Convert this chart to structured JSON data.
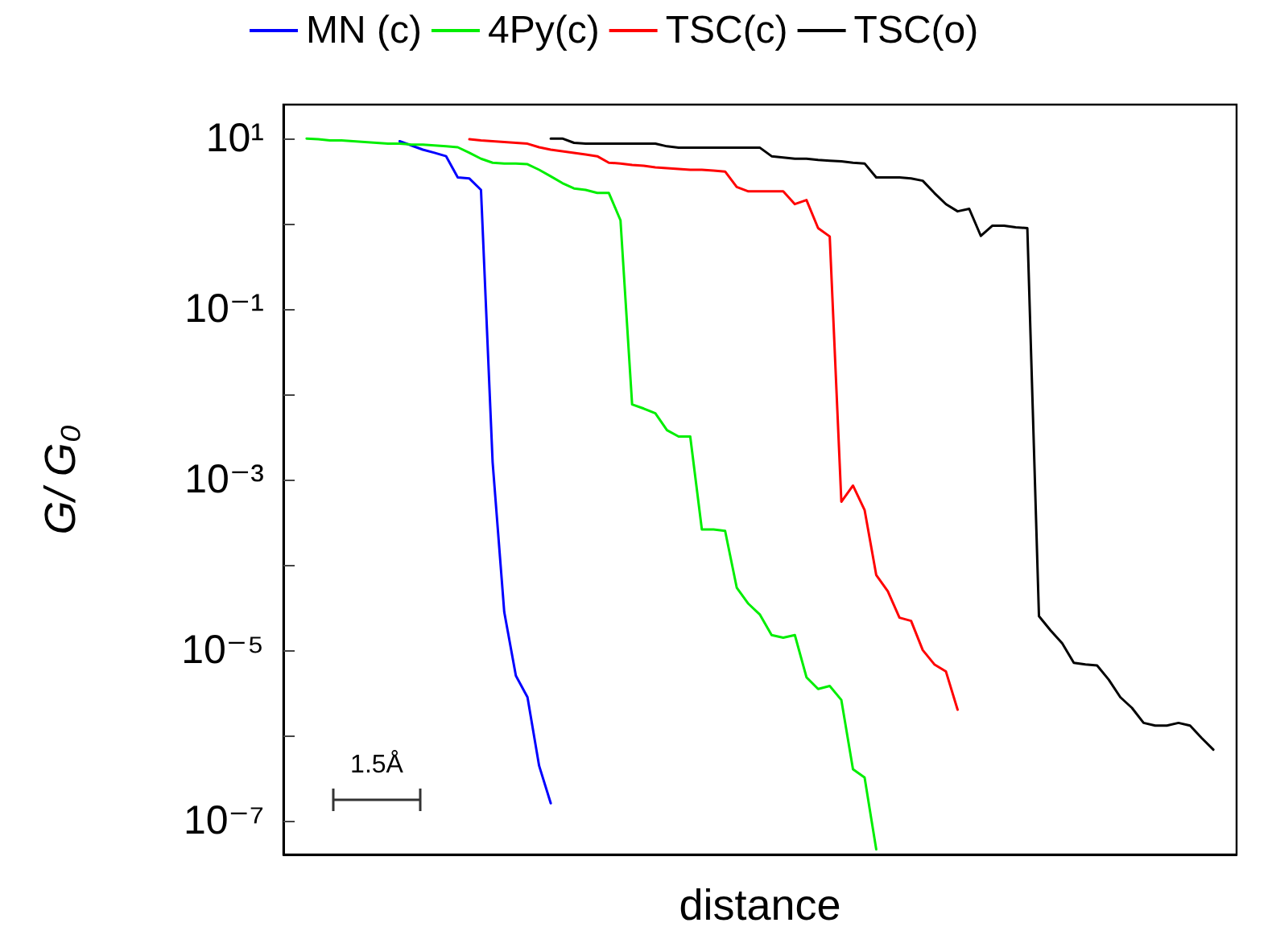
{
  "chart_data": {
    "type": "line",
    "xlabel": "distance",
    "ylabel": "G/ G₀",
    "log": "y",
    "legend": "top",
    "marker": "none",
    "line_style": "solid",
    "grid": false,
    "tick_labels": "y",
    "categories": [
      null,
      null,
      null,
      null,
      null,
      null,
      null,
      null,
      null,
      null,
      null,
      null,
      null,
      null,
      null,
      null,
      null,
      null,
      null,
      null,
      null,
      null,
      null,
      null,
      null,
      null,
      null,
      null,
      null,
      null,
      null,
      null,
      null,
      null,
      null,
      null,
      null,
      null,
      null,
      null,
      null,
      null,
      null,
      null,
      null,
      null,
      null,
      null,
      null,
      null,
      null,
      null,
      null,
      null,
      null,
      null,
      null,
      null,
      null,
      null,
      null,
      null,
      null,
      null,
      null,
      null,
      null,
      null,
      null,
      null,
      null,
      null,
      null,
      null,
      null,
      null,
      null,
      null,
      null,
      null,
      null,
      null,
      null
    ],
    "ylim": [
      4e-08,
      25
    ],
    "yticks": [
      {
        "value": 10,
        "label": "10¹"
      },
      {
        "value": 1,
        "label": null
      },
      {
        "value": 0.1,
        "label": "10⁻¹"
      },
      {
        "value": 0.01,
        "label": null
      },
      {
        "value": 0.001,
        "label": "10⁻³"
      },
      {
        "value": 0.0001,
        "label": null
      },
      {
        "value": 1e-05,
        "label": "10⁻⁵"
      },
      {
        "value": 1e-06,
        "label": null
      },
      {
        "value": 1e-07,
        "label": "10⁻⁷"
      }
    ],
    "annotations": [
      "1.5Å"
    ],
    "series": [
      {
        "name": "MN (c)",
        "color": "#0000ff",
        "values": [
          null,
          null,
          null,
          null,
          null,
          null,
          null,
          null,
          null,
          null,
          9.3,
          8.3,
          7.4,
          6.8,
          6.2,
          3.5,
          3.4,
          2.5,
          0.0016,
          2.8e-05,
          5e-06,
          2.8e-06,
          4.4e-07,
          1.6e-07,
          null,
          null,
          null,
          null,
          null,
          null,
          null,
          null,
          null,
          null,
          null,
          null,
          null,
          null,
          null,
          null,
          null,
          null,
          null,
          null,
          null,
          null,
          null,
          null,
          null,
          null,
          null,
          null,
          null,
          null,
          null,
          null,
          null,
          null,
          null,
          null,
          null,
          null,
          null,
          null,
          null,
          null,
          null,
          null,
          null,
          null,
          null,
          null,
          null,
          null,
          null,
          null,
          null,
          null,
          null,
          null,
          null,
          null,
          null
        ]
      },
      {
        "name": "4Py(c)",
        "color": "#00ee00",
        "values": [
          null,
          null,
          10,
          9.8,
          9.5,
          9.5,
          9.3,
          9.1,
          8.9,
          8.7,
          8.7,
          8.5,
          8.5,
          8.3,
          8.1,
          7.9,
          6.8,
          5.8,
          5.2,
          5.1,
          5.1,
          5.0,
          4.3,
          3.6,
          3.0,
          2.6,
          2.5,
          2.3,
          2.3,
          1.1,
          0.0076,
          0.0068,
          0.006,
          0.0038,
          0.0032,
          0.0032,
          0.00026,
          0.00026,
          0.00025,
          5.4e-05,
          3.5e-05,
          2.6e-05,
          1.5e-05,
          1.4e-05,
          1.5e-05,
          4.8e-06,
          3.5e-06,
          3.8e-06,
          2.6e-06,
          4e-07,
          3.2e-07,
          4.6e-08,
          null,
          null,
          null,
          null,
          null,
          null,
          null,
          null,
          null,
          null,
          null,
          null,
          null,
          null,
          null,
          null,
          null,
          null,
          null,
          null,
          null,
          null,
          null,
          null,
          null,
          null,
          null,
          null,
          null,
          null,
          null
        ]
      },
      {
        "name": "TSC(c)",
        "color": "#ff0000",
        "values": [
          null,
          null,
          null,
          null,
          null,
          null,
          null,
          null,
          null,
          null,
          null,
          null,
          null,
          null,
          null,
          null,
          9.8,
          9.5,
          9.3,
          9.1,
          8.9,
          8.7,
          7.9,
          7.4,
          7.1,
          6.8,
          6.5,
          6.2,
          5.2,
          5.1,
          4.9,
          4.8,
          4.6,
          4.5,
          4.4,
          4.3,
          4.3,
          4.2,
          4.1,
          2.7,
          2.4,
          2.4,
          2.4,
          2.4,
          1.7,
          1.9,
          0.89,
          0.71,
          0.00055,
          0.00085,
          0.00044,
          7.6e-05,
          4.9e-05,
          2.4e-05,
          2.2e-05,
          1e-05,
          6.8e-06,
          5.6e-06,
          2e-06,
          null,
          null,
          null,
          null,
          null,
          null,
          null,
          null,
          null,
          null,
          null,
          null,
          null,
          null,
          null,
          null,
          null,
          null,
          null,
          null,
          null,
          null,
          null,
          null
        ]
      },
      {
        "name": "TSC(o)",
        "color": "#000000",
        "values": [
          null,
          null,
          null,
          null,
          null,
          null,
          null,
          null,
          null,
          null,
          null,
          null,
          null,
          null,
          null,
          null,
          null,
          null,
          null,
          null,
          null,
          null,
          null,
          10,
          10,
          8.9,
          8.7,
          8.7,
          8.7,
          8.7,
          8.7,
          8.7,
          8.7,
          8.1,
          7.8,
          7.8,
          7.8,
          7.8,
          7.8,
          7.8,
          7.8,
          7.8,
          6.2,
          6.0,
          5.8,
          5.8,
          5.6,
          5.5,
          5.4,
          5.2,
          5.1,
          3.5,
          3.5,
          3.5,
          3.4,
          3.2,
          2.3,
          1.7,
          1.4,
          1.5,
          0.72,
          0.95,
          0.95,
          0.91,
          0.89,
          2.5e-05,
          1.7e-05,
          1.2e-05,
          7.1e-06,
          6.8e-06,
          6.6e-06,
          4.5e-06,
          2.8e-06,
          2.1e-06,
          1.4e-06,
          1.3e-06,
          1.3e-06,
          1.4e-06,
          1.3e-06,
          9.3e-07,
          6.8e-07,
          null,
          null
        ]
      }
    ]
  }
}
